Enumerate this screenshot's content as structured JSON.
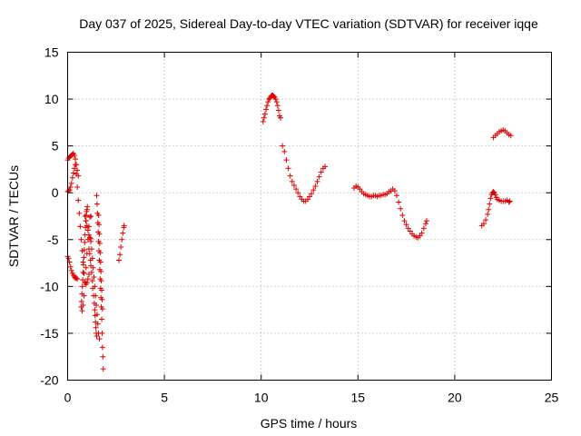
{
  "chart_data": {
    "type": "scatter",
    "title": "Day 037 of 2025, Sidereal Day-to-day VTEC variation (SDTVAR) for receiver iqqe",
    "xlabel": "GPS time / hours",
    "ylabel": "SDTVAR / TECUs",
    "xlim": [
      0,
      25
    ],
    "ylim": [
      -20,
      15
    ],
    "xticks": [
      0,
      5,
      10,
      15,
      20,
      25
    ],
    "yticks": [
      -20,
      -15,
      -10,
      -5,
      0,
      5,
      10,
      15
    ],
    "xtick_labels": [
      "0",
      "5",
      "10",
      "15",
      "20",
      "25"
    ],
    "ytick_labels": [
      "-20",
      "-15",
      "-10",
      "-5",
      "0",
      "5",
      "10",
      "15"
    ],
    "grid": true,
    "marker": "+",
    "color": "#e00000",
    "series": [
      {
        "name": "seg-early-1",
        "points": [
          [
            0.0,
            -6.8
          ],
          [
            0.05,
            -7.0
          ],
          [
            0.1,
            -7.4
          ],
          [
            0.15,
            -7.9
          ],
          [
            0.2,
            -8.3
          ],
          [
            0.25,
            -8.6
          ],
          [
            0.3,
            -8.8
          ],
          [
            0.35,
            -9.0
          ],
          [
            0.4,
            -9.1
          ],
          [
            0.45,
            -9.1
          ],
          [
            0.5,
            -9.2
          ]
        ]
      },
      {
        "name": "seg-early-2",
        "points": [
          [
            0.0,
            3.5
          ],
          [
            0.05,
            3.7
          ],
          [
            0.1,
            3.8
          ],
          [
            0.15,
            3.9
          ],
          [
            0.2,
            4.0
          ],
          [
            0.25,
            4.1
          ],
          [
            0.3,
            4.2
          ],
          [
            0.35,
            4.0
          ],
          [
            0.4,
            3.6
          ],
          [
            0.45,
            3.0
          ],
          [
            0.5,
            2.4
          ],
          [
            0.55,
            1.8
          ]
        ]
      },
      {
        "name": "seg-early-3",
        "points": [
          [
            0.0,
            0.1
          ],
          [
            0.05,
            0.2
          ],
          [
            0.1,
            0.3
          ],
          [
            0.15,
            0.6
          ],
          [
            0.2,
            1.0
          ],
          [
            0.25,
            1.6
          ],
          [
            0.3,
            2.1
          ],
          [
            0.35,
            2.6
          ],
          [
            0.4,
            3.0
          ],
          [
            0.45,
            2.0
          ],
          [
            0.5,
            0.6
          ],
          [
            0.55,
            -0.8
          ],
          [
            0.6,
            -2.2
          ],
          [
            0.65,
            -3.6
          ],
          [
            0.7,
            -5.0
          ],
          [
            0.75,
            -6.2
          ],
          [
            0.8,
            -7.4
          ],
          [
            0.85,
            -8.6
          ],
          [
            0.9,
            -9.5
          ],
          [
            0.95,
            -9.8
          ],
          [
            1.0,
            -9.6
          ],
          [
            1.05,
            -9.2
          ],
          [
            1.1,
            -8.7
          ]
        ]
      },
      {
        "name": "seg-early-4",
        "points": [
          [
            0.7,
            -12.2
          ],
          [
            0.72,
            -11.6
          ],
          [
            0.74,
            -10.8
          ],
          [
            0.76,
            -10.0
          ],
          [
            0.78,
            -9.3
          ],
          [
            0.8,
            -8.5
          ],
          [
            0.82,
            -7.7
          ],
          [
            0.84,
            -6.9
          ],
          [
            0.86,
            -6.1
          ],
          [
            0.88,
            -5.3
          ],
          [
            0.9,
            -4.5
          ],
          [
            0.92,
            -3.7
          ],
          [
            0.94,
            -3.0
          ],
          [
            0.96,
            -2.4
          ],
          [
            0.98,
            -2.0
          ],
          [
            1.0,
            -1.8
          ],
          [
            1.02,
            -1.5
          ]
        ]
      },
      {
        "name": "seg-early-5",
        "points": [
          [
            0.75,
            -12.6
          ],
          [
            0.8,
            -12.0
          ],
          [
            0.85,
            -11.0
          ],
          [
            0.9,
            -9.6
          ],
          [
            0.95,
            -8.0
          ],
          [
            1.0,
            -6.5
          ],
          [
            1.05,
            -5.0
          ],
          [
            1.1,
            -3.6
          ],
          [
            1.15,
            -2.6
          ],
          [
            1.2,
            -2.5
          ]
        ]
      },
      {
        "name": "seg-early-6",
        "points": [
          [
            0.9,
            -2.5
          ],
          [
            0.95,
            -3.0
          ],
          [
            1.0,
            -3.5
          ],
          [
            1.05,
            -4.0
          ],
          [
            1.1,
            -4.5
          ],
          [
            1.15,
            -4.8
          ],
          [
            1.2,
            -4.9
          ]
        ]
      },
      {
        "name": "seg-early-7",
        "points": [
          [
            1.1,
            -6.0
          ],
          [
            1.14,
            -6.5
          ],
          [
            1.18,
            -7.2
          ],
          [
            1.2,
            -7.8
          ],
          [
            1.24,
            -8.5
          ],
          [
            1.28,
            -9.4
          ],
          [
            1.3,
            -10.2
          ],
          [
            1.34,
            -11.0
          ],
          [
            1.38,
            -11.8
          ],
          [
            1.4,
            -12.5
          ],
          [
            1.42,
            -13.1
          ],
          [
            1.44,
            -13.8
          ],
          [
            1.46,
            -14.4
          ],
          [
            1.48,
            -15.0
          ],
          [
            1.5,
            -15.3
          ]
        ]
      },
      {
        "name": "seg-early-8",
        "points": [
          [
            1.2,
            -5.2
          ],
          [
            1.24,
            -6.0
          ],
          [
            1.28,
            -7.0
          ],
          [
            1.32,
            -8.0
          ],
          [
            1.36,
            -9.0
          ],
          [
            1.4,
            -10.0
          ],
          [
            1.44,
            -11.0
          ],
          [
            1.48,
            -12.0
          ],
          [
            1.52,
            -13.0
          ],
          [
            1.56,
            -14.0
          ],
          [
            1.6,
            -15.0
          ],
          [
            1.64,
            -15.6
          ]
        ]
      },
      {
        "name": "seg-early-9",
        "points": [
          [
            1.5,
            -0.3
          ],
          [
            1.52,
            -1.2
          ],
          [
            1.54,
            -2.2
          ],
          [
            1.56,
            -3.2
          ],
          [
            1.58,
            -4.2
          ],
          [
            1.6,
            -5.2
          ],
          [
            1.62,
            -6.2
          ],
          [
            1.64,
            -7.2
          ],
          [
            1.66,
            -8.2
          ],
          [
            1.68,
            -9.2
          ],
          [
            1.7,
            -10.2
          ],
          [
            1.72,
            -11.2
          ],
          [
            1.74,
            -12.2
          ],
          [
            1.76,
            -13.5
          ],
          [
            1.78,
            -15.0
          ],
          [
            1.8,
            -16.5
          ],
          [
            1.82,
            -17.5
          ],
          [
            1.84,
            -18.8
          ]
        ]
      },
      {
        "name": "seg-early-10",
        "points": [
          [
            1.6,
            -2.4
          ],
          [
            1.62,
            -3.4
          ],
          [
            1.64,
            -4.4
          ],
          [
            1.66,
            -5.4
          ],
          [
            1.68,
            -6.4
          ],
          [
            1.7,
            -7.4
          ],
          [
            1.72,
            -8.4
          ],
          [
            1.74,
            -9.4
          ],
          [
            1.76,
            -10.4
          ],
          [
            1.78,
            -11.4
          ],
          [
            1.8,
            -12.4
          ]
        ]
      },
      {
        "name": "seg-early-11",
        "points": [
          [
            2.65,
            -7.2
          ],
          [
            2.7,
            -6.6
          ],
          [
            2.75,
            -5.8
          ],
          [
            2.8,
            -5.0
          ],
          [
            2.85,
            -4.3
          ],
          [
            2.9,
            -3.7
          ],
          [
            2.92,
            -3.5
          ]
        ]
      },
      {
        "name": "seg-10h",
        "points": [
          [
            10.1,
            7.6
          ],
          [
            10.15,
            8.0
          ],
          [
            10.2,
            8.4
          ],
          [
            10.25,
            8.9
          ],
          [
            10.3,
            9.3
          ],
          [
            10.35,
            9.7
          ],
          [
            10.4,
            10.0
          ],
          [
            10.45,
            10.1
          ],
          [
            10.5,
            10.3
          ],
          [
            10.55,
            10.4
          ],
          [
            10.6,
            10.4
          ],
          [
            10.65,
            10.3
          ],
          [
            10.7,
            10.2
          ],
          [
            10.75,
            10.0
          ],
          [
            10.8,
            9.7
          ],
          [
            10.85,
            9.3
          ],
          [
            10.9,
            8.8
          ],
          [
            10.95,
            8.2
          ],
          [
            11.0,
            8.0
          ]
        ]
      },
      {
        "name": "seg-11h",
        "points": [
          [
            11.1,
            5.0
          ],
          [
            11.2,
            4.4
          ],
          [
            11.3,
            3.5
          ],
          [
            11.4,
            2.6
          ],
          [
            11.5,
            1.8
          ],
          [
            11.6,
            1.2
          ],
          [
            11.7,
            0.8
          ],
          [
            11.8,
            0.4
          ],
          [
            11.9,
            0.0
          ],
          [
            12.0,
            -0.4
          ],
          [
            12.1,
            -0.7
          ],
          [
            12.2,
            -0.9
          ],
          [
            12.3,
            -0.9
          ],
          [
            12.4,
            -0.7
          ],
          [
            12.5,
            -0.4
          ],
          [
            12.6,
            -0.1
          ],
          [
            12.7,
            0.3
          ],
          [
            12.8,
            0.7
          ],
          [
            12.9,
            1.2
          ],
          [
            13.0,
            1.7
          ],
          [
            13.1,
            2.2
          ],
          [
            13.2,
            2.6
          ],
          [
            13.3,
            2.8
          ]
        ]
      },
      {
        "name": "seg-15h",
        "points": [
          [
            14.8,
            0.5
          ],
          [
            14.9,
            0.7
          ],
          [
            15.0,
            0.6
          ],
          [
            15.1,
            0.4
          ],
          [
            15.2,
            0.1
          ],
          [
            15.3,
            -0.1
          ],
          [
            15.4,
            -0.2
          ],
          [
            15.5,
            -0.3
          ],
          [
            15.6,
            -0.4
          ],
          [
            15.7,
            -0.4
          ],
          [
            15.8,
            -0.3
          ],
          [
            15.9,
            -0.3
          ],
          [
            16.0,
            -0.4
          ],
          [
            16.1,
            -0.3
          ],
          [
            16.2,
            -0.3
          ],
          [
            16.3,
            -0.2
          ],
          [
            16.4,
            -0.2
          ],
          [
            16.5,
            -0.1
          ],
          [
            16.6,
            0.1
          ],
          [
            16.7,
            0.2
          ],
          [
            16.8,
            0.4
          ],
          [
            16.9,
            0.2
          ],
          [
            17.0,
            -0.3
          ],
          [
            17.1,
            -1.0
          ],
          [
            17.2,
            -1.7
          ],
          [
            17.3,
            -2.4
          ],
          [
            17.4,
            -3.0
          ],
          [
            17.5,
            -3.4
          ],
          [
            17.6,
            -3.8
          ],
          [
            17.7,
            -4.1
          ],
          [
            17.8,
            -4.4
          ],
          [
            17.9,
            -4.6
          ],
          [
            18.0,
            -4.7
          ],
          [
            18.1,
            -4.8
          ],
          [
            18.2,
            -4.6
          ],
          [
            18.3,
            -4.3
          ],
          [
            18.4,
            -3.8
          ],
          [
            18.5,
            -3.3
          ],
          [
            18.55,
            -3.0
          ]
        ]
      },
      {
        "name": "seg-21h",
        "points": [
          [
            21.4,
            -3.5
          ],
          [
            21.5,
            -3.3
          ],
          [
            21.6,
            -2.9
          ],
          [
            21.7,
            -2.3
          ],
          [
            21.75,
            -1.8
          ],
          [
            21.8,
            -1.2
          ],
          [
            21.85,
            -0.6
          ],
          [
            21.9,
            -0.2
          ],
          [
            21.95,
            0.0
          ],
          [
            22.0,
            0.1
          ],
          [
            22.05,
            0.0
          ],
          [
            22.1,
            -0.2
          ],
          [
            22.15,
            -0.5
          ],
          [
            22.2,
            -0.7
          ],
          [
            22.3,
            -0.8
          ],
          [
            22.4,
            -0.9
          ],
          [
            22.5,
            -0.9
          ],
          [
            22.6,
            -0.9
          ],
          [
            22.7,
            -0.8
          ],
          [
            22.8,
            -1.0
          ],
          [
            22.85,
            -0.9
          ]
        ]
      },
      {
        "name": "seg-22h",
        "points": [
          [
            22.0,
            5.9
          ],
          [
            22.1,
            6.1
          ],
          [
            22.2,
            6.3
          ],
          [
            22.3,
            6.5
          ],
          [
            22.4,
            6.6
          ],
          [
            22.5,
            6.7
          ],
          [
            22.6,
            6.6
          ],
          [
            22.7,
            6.4
          ],
          [
            22.8,
            6.2
          ],
          [
            22.9,
            6.1
          ]
        ]
      }
    ]
  }
}
